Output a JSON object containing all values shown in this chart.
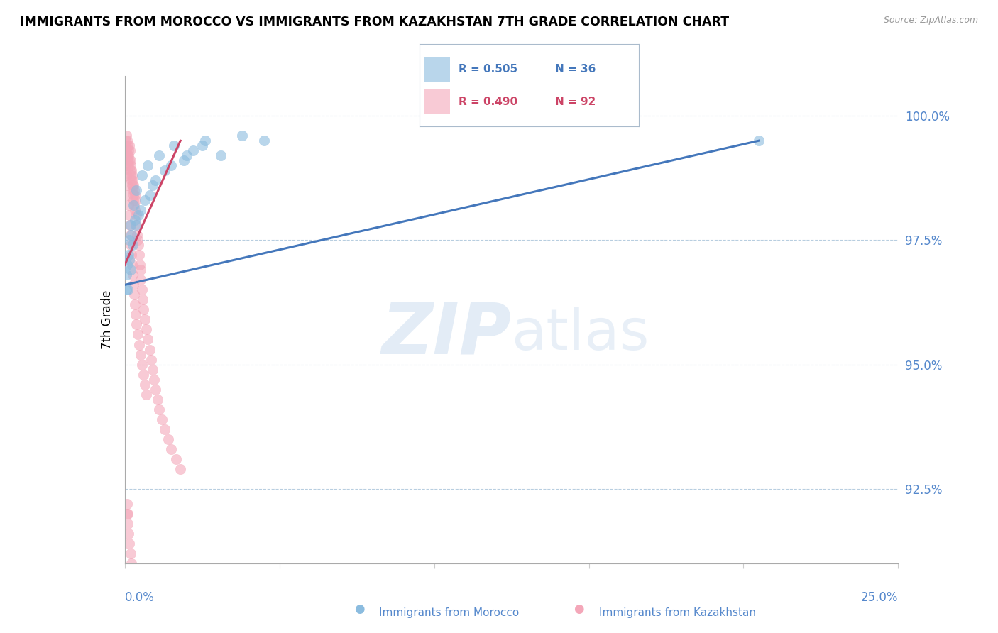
{
  "title": "IMMIGRANTS FROM MOROCCO VS IMMIGRANTS FROM KAZAKHSTAN 7TH GRADE CORRELATION CHART",
  "source": "Source: ZipAtlas.com",
  "ylabel": "7th Grade",
  "xlim": [
    0.0,
    25.0
  ],
  "ylim": [
    91.0,
    100.8
  ],
  "y_tick_vals": [
    92.5,
    95.0,
    97.5,
    100.0
  ],
  "legend_blue_R": "R = 0.505",
  "legend_blue_N": "N = 36",
  "legend_pink_R": "R = 0.490",
  "legend_pink_N": "N = 92",
  "blue_color": "#8bbcdf",
  "pink_color": "#f4a7b9",
  "blue_line_color": "#4477bb",
  "pink_line_color": "#cc4466",
  "tick_color": "#5588cc",
  "watermark_color": "#ccddef",
  "background_color": "#ffffff",
  "blue_scatter_x": [
    0.05,
    0.08,
    0.1,
    0.12,
    0.15,
    0.18,
    0.2,
    0.22,
    0.28,
    0.32,
    0.38,
    0.45,
    0.55,
    0.65,
    0.75,
    0.9,
    1.1,
    1.3,
    1.6,
    1.9,
    2.2,
    2.6,
    3.1,
    3.8,
    0.06,
    0.14,
    0.25,
    0.35,
    0.5,
    0.8,
    1.0,
    1.5,
    2.0,
    2.5,
    4.5,
    20.5
  ],
  "blue_scatter_y": [
    96.8,
    97.0,
    96.5,
    97.2,
    97.5,
    97.8,
    96.9,
    97.6,
    98.2,
    97.9,
    98.5,
    98.0,
    98.8,
    98.3,
    99.0,
    98.6,
    99.2,
    98.9,
    99.4,
    99.1,
    99.3,
    99.5,
    99.2,
    99.6,
    96.5,
    97.1,
    97.4,
    97.8,
    98.1,
    98.4,
    98.7,
    99.0,
    99.2,
    99.4,
    99.5,
    99.5
  ],
  "pink_scatter_x": [
    0.03,
    0.04,
    0.05,
    0.06,
    0.07,
    0.08,
    0.09,
    0.1,
    0.11,
    0.12,
    0.13,
    0.14,
    0.15,
    0.16,
    0.17,
    0.18,
    0.19,
    0.2,
    0.21,
    0.22,
    0.23,
    0.24,
    0.25,
    0.26,
    0.27,
    0.28,
    0.29,
    0.3,
    0.31,
    0.32,
    0.33,
    0.35,
    0.37,
    0.38,
    0.4,
    0.42,
    0.44,
    0.46,
    0.48,
    0.5,
    0.52,
    0.55,
    0.58,
    0.6,
    0.65,
    0.7,
    0.75,
    0.8,
    0.85,
    0.9,
    0.95,
    1.0,
    1.05,
    1.1,
    1.2,
    1.3,
    1.4,
    1.5,
    1.65,
    1.8,
    0.04,
    0.06,
    0.08,
    0.1,
    0.12,
    0.14,
    0.16,
    0.18,
    0.2,
    0.22,
    0.24,
    0.26,
    0.28,
    0.3,
    0.32,
    0.35,
    0.38,
    0.42,
    0.46,
    0.5,
    0.55,
    0.6,
    0.65,
    0.7,
    0.08,
    0.1,
    0.12,
    0.15,
    0.18,
    0.22,
    0.08,
    0.1
  ],
  "pink_scatter_y": [
    99.5,
    99.4,
    99.6,
    99.3,
    99.5,
    99.2,
    99.4,
    99.1,
    99.3,
    99.0,
    99.2,
    99.4,
    99.1,
    99.3,
    98.9,
    99.1,
    98.8,
    99.0,
    98.7,
    98.9,
    98.6,
    98.8,
    98.5,
    98.7,
    98.4,
    98.6,
    98.3,
    98.5,
    98.2,
    98.4,
    98.1,
    98.3,
    98.0,
    97.8,
    97.6,
    97.5,
    97.4,
    97.2,
    97.0,
    96.9,
    96.7,
    96.5,
    96.3,
    96.1,
    95.9,
    95.7,
    95.5,
    95.3,
    95.1,
    94.9,
    94.7,
    94.5,
    94.3,
    94.1,
    93.9,
    93.7,
    93.5,
    93.3,
    93.1,
    92.9,
    99.0,
    98.8,
    98.6,
    98.4,
    98.2,
    98.0,
    97.8,
    97.6,
    97.4,
    97.2,
    97.0,
    96.8,
    96.6,
    96.4,
    96.2,
    96.0,
    95.8,
    95.6,
    95.4,
    95.2,
    95.0,
    94.8,
    94.6,
    94.4,
    92.0,
    91.8,
    91.6,
    91.4,
    91.2,
    91.0,
    92.2,
    92.0
  ]
}
